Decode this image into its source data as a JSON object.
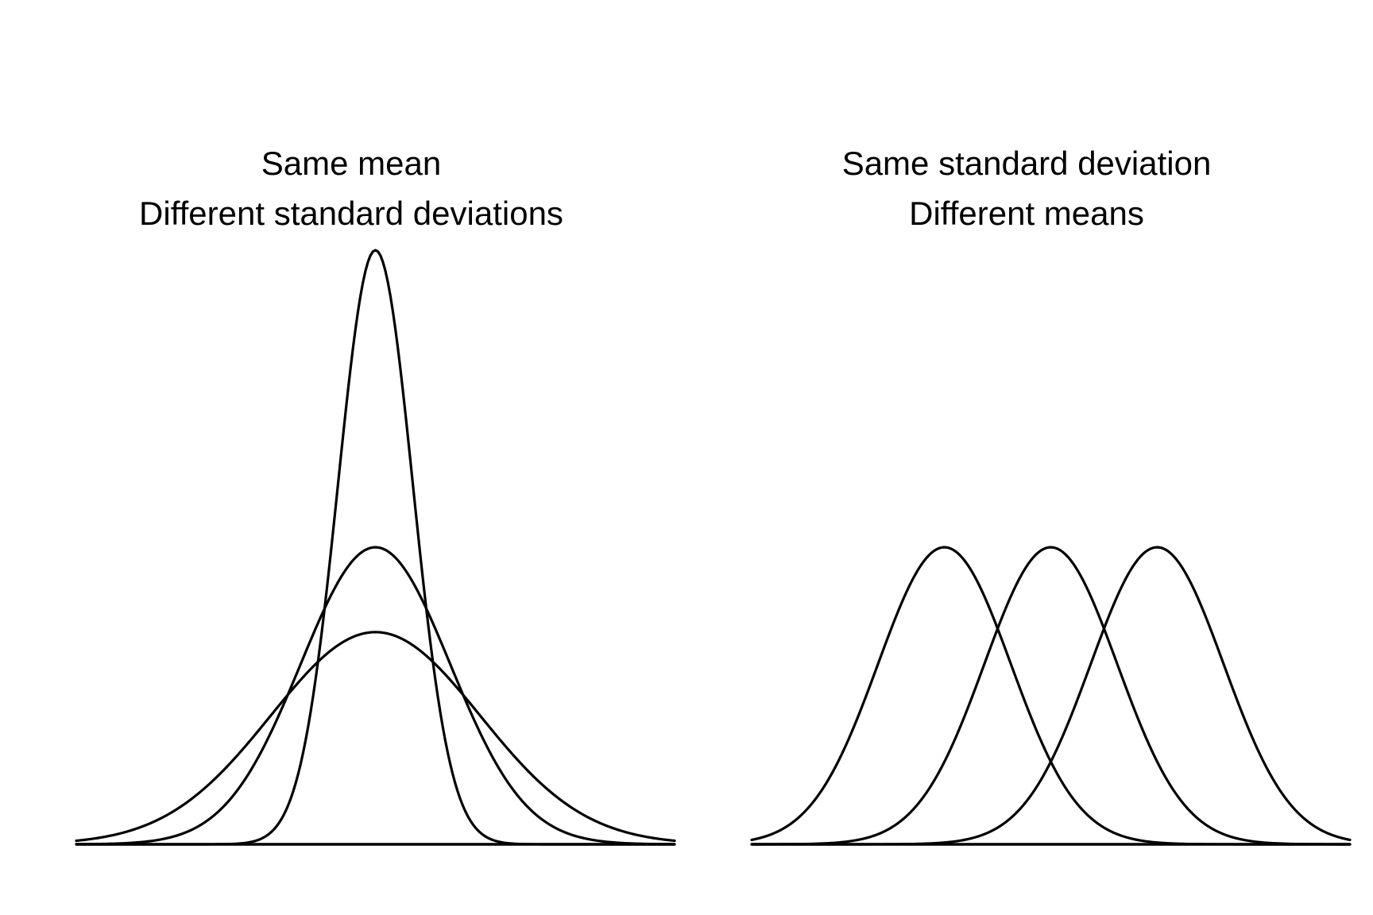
{
  "chart_data": [
    {
      "type": "line",
      "title_lines": [
        "Same mean",
        "Different standard deviations"
      ],
      "xlim": [
        -4,
        4
      ],
      "ylim": [
        0,
        0.8
      ],
      "grid": false,
      "axes_visible": false,
      "legend": "none",
      "line_color": "#000000",
      "series": [
        {
          "mean": 0,
          "sd": 0.5
        },
        {
          "mean": 0,
          "sd": 1.0
        },
        {
          "mean": 0,
          "sd": 1.4
        }
      ]
    },
    {
      "type": "line",
      "title_lines": [
        "Same standard deviation",
        "Different means"
      ],
      "xlim": [
        -4.5,
        4.5
      ],
      "ylim": [
        0,
        0.8
      ],
      "grid": false,
      "axes_visible": false,
      "legend": "none",
      "line_color": "#000000",
      "series": [
        {
          "mean": -1.6,
          "sd": 1.0
        },
        {
          "mean": 0,
          "sd": 1.0
        },
        {
          "mean": 1.6,
          "sd": 1.0
        }
      ]
    }
  ]
}
